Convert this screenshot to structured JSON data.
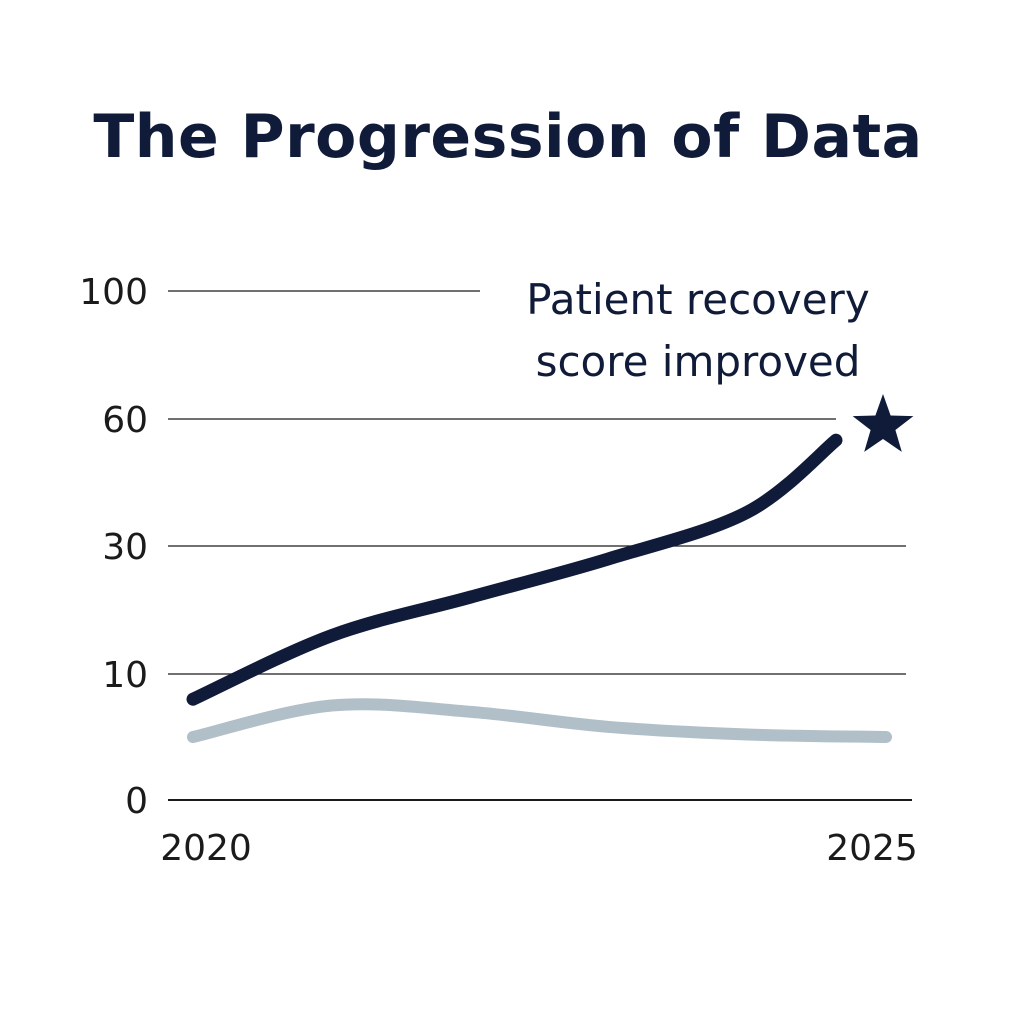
{
  "chart_data": {
    "type": "line",
    "title": "The Progression of Data",
    "xlabel": "",
    "ylabel": "",
    "x_tick_labels": [
      "2020",
      "2025"
    ],
    "y_ticks": [
      0,
      10,
      30,
      60,
      100
    ],
    "y_tick_labels": [
      "0",
      "10",
      "30",
      "60",
      "100"
    ],
    "x": [
      2020,
      2021,
      2022,
      2023,
      2024,
      2025
    ],
    "series": [
      {
        "name": "",
        "color": "#0f1b38",
        "values": [
          8,
          16,
          22,
          28,
          38,
          55
        ]
      },
      {
        "name": "",
        "color": "#b1bfc8",
        "values": [
          5,
          7.5,
          7,
          5.8,
          5.2,
          5
        ]
      }
    ],
    "annotation": {
      "lines": [
        "Patient recovery",
        "score improved"
      ],
      "marker": "star",
      "marker_color": "#0f1b38"
    },
    "grid": "horizontal"
  }
}
